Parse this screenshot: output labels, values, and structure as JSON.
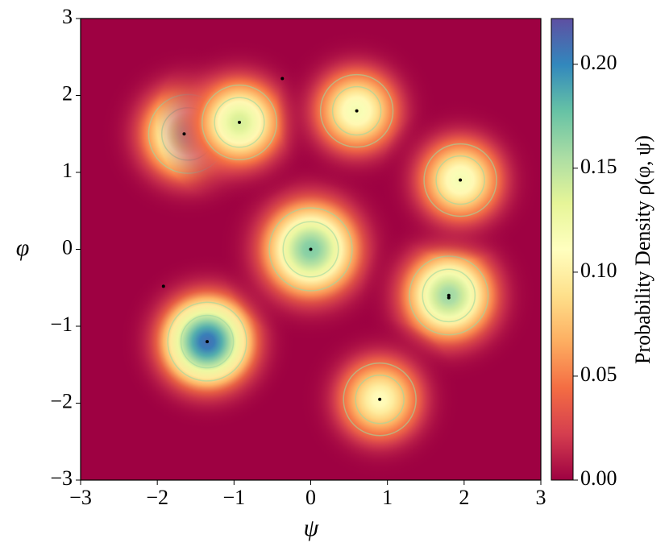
{
  "chart_data": {
    "type": "density",
    "xlabel": "ψ",
    "ylabel": "φ",
    "xlim": [
      -3,
      3
    ],
    "ylim": [
      -3,
      3
    ],
    "xticks": [
      {
        "value": -3,
        "label": "−3"
      },
      {
        "value": -2,
        "label": "−2"
      },
      {
        "value": -1,
        "label": "−1"
      },
      0,
      1,
      2,
      3
    ],
    "yticks": [
      {
        "value": -3,
        "label": "−3"
      },
      {
        "value": -2,
        "label": "−2"
      },
      {
        "value": -1,
        "label": "−1"
      },
      0,
      1,
      2,
      3
    ],
    "colormap": [
      "#9e0142",
      "#d53e4f",
      "#f46d43",
      "#fdae61",
      "#fee08b",
      "#ffffbf",
      "#e6f598",
      "#abdda4",
      "#66c2a5",
      "#3288bd",
      "#5e4fa2"
    ],
    "clim": [
      0,
      0.222
    ],
    "cticks": [
      {
        "value": 0,
        "label": "0.00"
      },
      {
        "value": 0.05,
        "label": "0.05"
      },
      {
        "value": 0.1,
        "label": "0.10"
      },
      {
        "value": 0.15,
        "label": "0.15"
      },
      {
        "value": 0.2,
        "label": "0.20"
      }
    ],
    "clabel": "Probability Density ρ(φ, ψ)",
    "peaks": {
      "x": [
        -1.35,
        0,
        1.8,
        -1.6,
        -0.93,
        0.6,
        1.95,
        0.9
      ],
      "y": [
        -1.2,
        0,
        -0.6,
        1.5,
        1.65,
        1.8,
        0.9,
        -1.95
      ],
      "values": [
        0.21,
        0.17,
        0.16,
        0.15,
        0.14,
        0.12,
        0.12,
        0.11
      ],
      "sigma": [
        0.38,
        0.4,
        0.38,
        0.38,
        0.36,
        0.35,
        0.35,
        0.35
      ]
    },
    "points": {
      "color": "#000000",
      "x": [
        -1.65,
        -0.93,
        -0.37,
        0.6,
        1.95,
        0,
        1.8,
        1.8,
        -1.92,
        -1.35,
        0.9
      ],
      "y": [
        1.5,
        1.65,
        2.22,
        1.8,
        0.9,
        0,
        -0.6,
        -0.63,
        -0.48,
        -1.2,
        -1.95
      ]
    }
  }
}
